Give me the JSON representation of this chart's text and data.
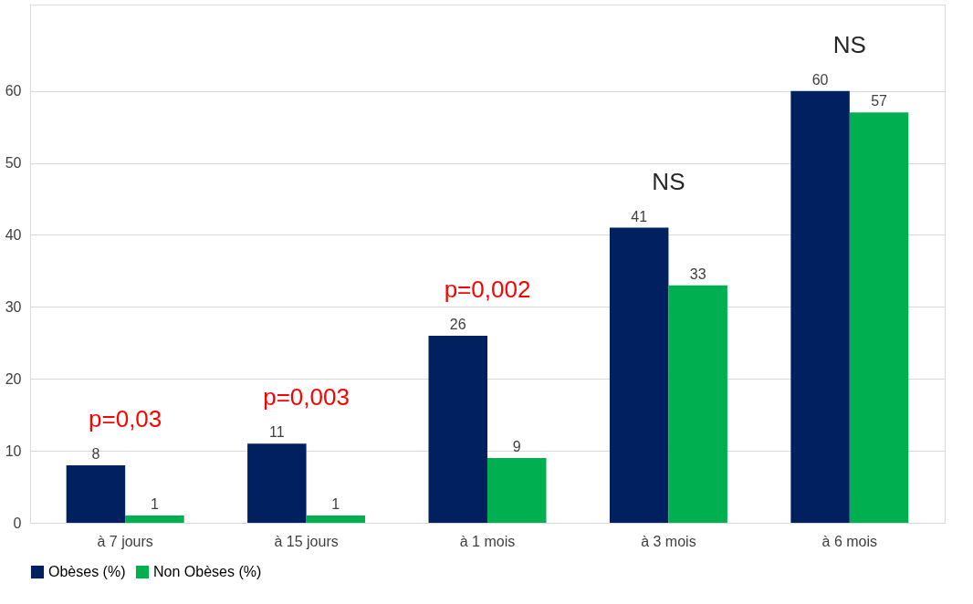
{
  "chart_data": {
    "type": "bar",
    "categories": [
      "à 7 jours",
      "à 15 jours",
      "à 1 mois",
      "à 3 mois",
      "à 6 mois"
    ],
    "series": [
      {
        "name": "Obèses (%)",
        "color": "#002060",
        "values": [
          8,
          11,
          26,
          41,
          60
        ]
      },
      {
        "name": "Non Obèses (%)",
        "color": "#00b050",
        "values": [
          1,
          1,
          9,
          33,
          57
        ]
      }
    ],
    "ylim": [
      0,
      72
    ],
    "yticks": [
      0,
      10,
      20,
      30,
      40,
      50,
      60
    ],
    "grid": "y",
    "legend": "bottom",
    "data_labels": true,
    "annotations": [
      "p=0,03",
      "p=0,003",
      "p=0,002",
      "NS",
      "NS"
    ]
  }
}
